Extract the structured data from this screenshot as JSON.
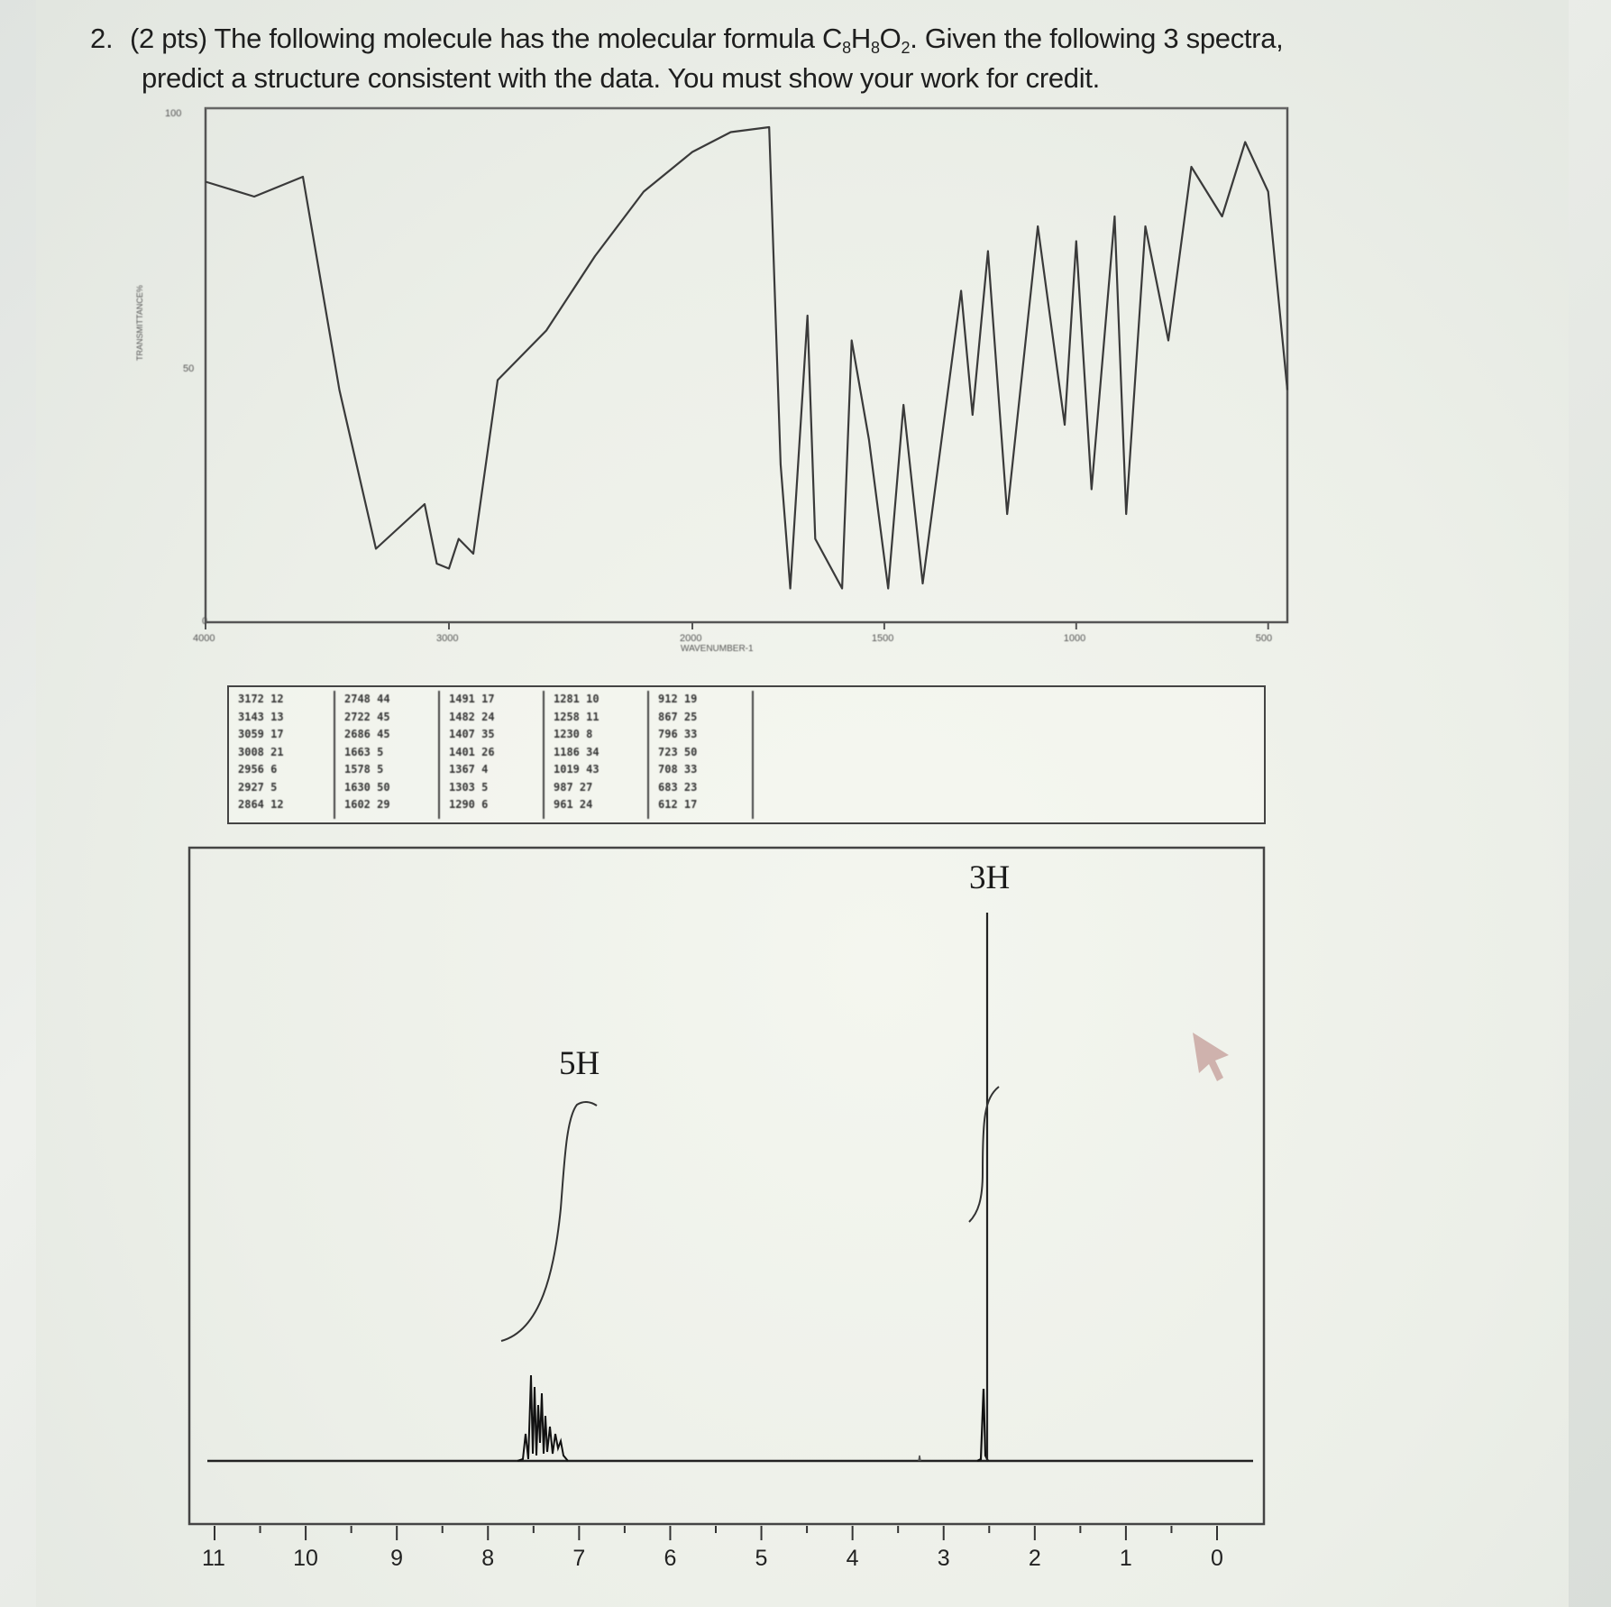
{
  "question": {
    "number": "2.",
    "line1_pre": "(2 pts) The following molecule has the molecular formula C",
    "sub_c": "8",
    "h": "H",
    "sub_h": "8",
    "o": "O",
    "sub_o": "2",
    "line1_post": ". Given the following 3 spectra,",
    "line2": "predict a structure consistent with the data. You must show your work for credit."
  },
  "ir": {
    "y_top_label": "100",
    "y_mid_label": "50",
    "y_bottom_label": "0",
    "y_axis_title": "TRANSMITTANCE%",
    "x_ticks": [
      "4000",
      "3000",
      "2000",
      "1500",
      "1000",
      "500"
    ],
    "x_axis_title": "WAVENUMBER-1",
    "peak_table": [
      [
        "3172 12",
        "3143 13",
        "3059 17",
        "3008 21",
        "2956 6",
        "2927 5",
        "2864 12"
      ],
      [
        "2748 44",
        "2722 45",
        "2686 45",
        "1663 5",
        "1578 5",
        "1630 50",
        "1602 29"
      ],
      [
        "1491 17",
        "1482 24",
        "1407 35",
        "1401 26",
        "1367 4",
        "1303 5",
        "1290 6"
      ],
      [
        "1281 10",
        "1258 11",
        "1230 8",
        "1186 34",
        "1019 43",
        "987 27",
        "961 24"
      ],
      [
        "912 19",
        "867 25",
        "796 33",
        "723 50",
        "708 33",
        "683 23",
        "612 17"
      ]
    ]
  },
  "nmr": {
    "x_ticks": [
      "11",
      "10",
      "9",
      "8",
      "7",
      "6",
      "5",
      "4",
      "3",
      "2",
      "1",
      "0"
    ],
    "integrations": [
      {
        "label": "5H",
        "ppm": 7.3
      },
      {
        "label": "3H",
        "ppm": 2.6
      }
    ]
  },
  "chart_data": [
    {
      "type": "line",
      "xlabel": "WAVENUMBER-1",
      "ylabel": "TRANSMITTANCE%",
      "xlim": [
        4000,
        450
      ],
      "ylim": [
        0,
        100
      ],
      "x": [
        4000,
        3800,
        3600,
        3450,
        3300,
        3100,
        3050,
        3000,
        2960,
        2900,
        2800,
        2600,
        2400,
        2200,
        2000,
        1900,
        1800,
        1770,
        1745,
        1700,
        1680,
        1610,
        1585,
        1540,
        1490,
        1450,
        1400,
        1300,
        1270,
        1230,
        1180,
        1100,
        1030,
        1000,
        960,
        900,
        870,
        820,
        760,
        700,
        620,
        560,
        500,
        450
      ],
      "y": [
        87,
        84,
        88,
        45,
        13,
        22,
        10,
        9,
        15,
        12,
        47,
        57,
        72,
        85,
        93,
        97,
        98,
        30,
        5,
        60,
        15,
        5,
        55,
        35,
        5,
        42,
        6,
        65,
        40,
        73,
        20,
        78,
        38,
        75,
        25,
        80,
        20,
        78,
        55,
        90,
        80,
        95,
        85,
        45
      ]
    },
    {
      "type": "line",
      "xlabel": "",
      "ylabel": "",
      "xlim": [
        11,
        0
      ],
      "x": [
        7.6,
        7.5,
        7.45,
        7.4,
        7.3,
        7.2,
        2.6
      ],
      "y": [
        0.9,
        0.75,
        1.0,
        0.7,
        0.45,
        0.3,
        3.8
      ],
      "integrations": [
        {
          "ppm": 7.3,
          "H": 5
        },
        {
          "ppm": 2.6,
          "H": 3
        }
      ]
    }
  ]
}
